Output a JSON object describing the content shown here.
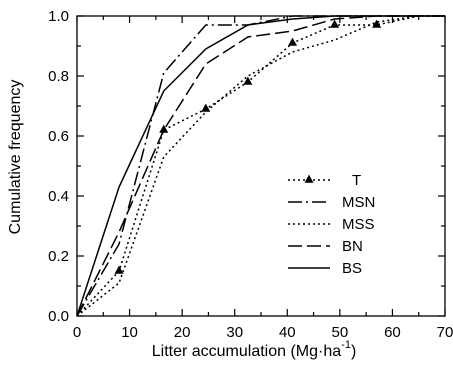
{
  "chart_data": {
    "type": "line",
    "title": "",
    "xlabel": "Litter accumulation (Mg·ha",
    "xlabel_superscript": "-1",
    "xlabel_close": ")",
    "ylabel": "Cumulative frequency",
    "xlim": [
      0,
      70
    ],
    "ylim": [
      0.0,
      1.0
    ],
    "xticks": [
      "0",
      "10",
      "20",
      "30",
      "40",
      "50",
      "60",
      "70"
    ],
    "yticks": [
      "0.0",
      "0.2",
      "0.4",
      "0.6",
      "0.8",
      "1.0"
    ],
    "grid": false,
    "legend_position": "center-right",
    "series": [
      {
        "name": "T",
        "style": "dotted-triangle",
        "color": "#000000",
        "x": [
          0,
          8,
          16.5,
          24.5,
          32.5,
          41,
          49,
          57,
          65,
          70
        ],
        "y": [
          0,
          0.15,
          0.62,
          0.69,
          0.78,
          0.91,
          0.97,
          0.97,
          1.0,
          1.0
        ]
      },
      {
        "name": "MSN",
        "style": "dash-dot",
        "color": "#000000",
        "x": [
          0,
          8,
          16.5,
          24.5,
          32.5,
          41,
          49,
          57,
          65,
          70
        ],
        "y": [
          0,
          0.24,
          0.81,
          0.97,
          0.97,
          1.0,
          1.0,
          1.0,
          1.0,
          1.0
        ]
      },
      {
        "name": "MSS",
        "style": "dotted",
        "color": "#000000",
        "x": [
          0,
          8,
          16.5,
          24.5,
          32.5,
          41,
          49,
          57,
          65,
          70
        ],
        "y": [
          0,
          0.11,
          0.53,
          0.68,
          0.8,
          0.88,
          0.92,
          0.98,
          1.0,
          1.0
        ]
      },
      {
        "name": "BN",
        "style": "long-dash",
        "color": "#000000",
        "x": [
          0,
          8,
          16.5,
          24.5,
          32.5,
          41,
          49,
          57,
          65,
          70
        ],
        "y": [
          0,
          0.28,
          0.62,
          0.84,
          0.93,
          0.95,
          0.99,
          1.0,
          1.0,
          1.0
        ]
      },
      {
        "name": "BS",
        "style": "solid",
        "color": "#000000",
        "x": [
          0,
          8,
          16.5,
          24.5,
          32.5,
          41,
          49,
          57,
          65,
          70
        ],
        "y": [
          0,
          0.43,
          0.75,
          0.89,
          0.97,
          0.99,
          1.0,
          1.0,
          1.0,
          1.0
        ]
      }
    ]
  }
}
